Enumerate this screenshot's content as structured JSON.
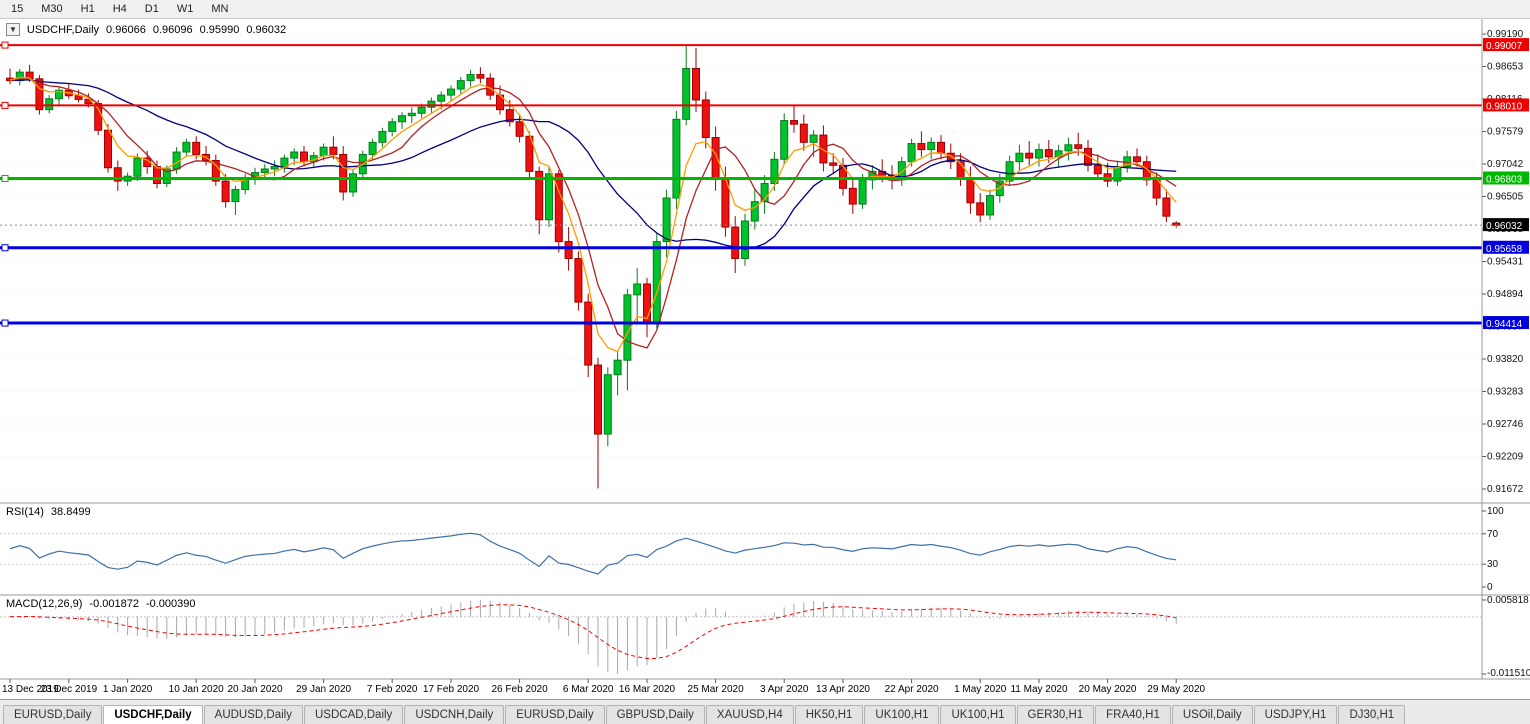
{
  "toolbar": {
    "timeframes": [
      "15",
      "M30",
      "H1",
      "H4",
      "D1",
      "W1",
      "MN"
    ]
  },
  "header": {
    "dropdown_icon": "▼",
    "title": "USDCHF,Daily",
    "open": "0.96066",
    "high": "0.96096",
    "low": "0.95990",
    "close": "0.96032"
  },
  "chart_data": {
    "type": "candlestick",
    "title": "USDCHF,Daily",
    "up_color": "#00c22b",
    "down_color": "#ee1111",
    "y_axis": {
      "min": 0.91672,
      "max": 0.9919,
      "ticks": [
        "0.99190",
        "0.98653",
        "0.98116",
        "0.97579",
        "0.97042",
        "0.96505",
        "0.95968",
        "0.95431",
        "0.94894",
        "0.94357",
        "0.93820",
        "0.93283",
        "0.92746",
        "0.92209",
        "0.91672"
      ]
    },
    "hlines": [
      {
        "value": 0.99007,
        "label": "0.99007",
        "color": "#ee0000",
        "width": 2
      },
      {
        "value": 0.9801,
        "label": "0.98010",
        "color": "#ee0000",
        "width": 2
      },
      {
        "value": 0.96803,
        "label": "0.96803",
        "color": "#00b800",
        "width": 3
      },
      {
        "value": 0.95658,
        "label": "0.95658",
        "color": "#0000dd",
        "width": 3
      },
      {
        "value": 0.94414,
        "label": "0.94414",
        "color": "#0000dd",
        "width": 3
      }
    ],
    "current_price": {
      "value": 0.96032,
      "label": "0.96032",
      "bg": "#000000"
    },
    "x_labels": [
      [
        "13 Dec 2019",
        0
      ],
      [
        "23 Dec 2019",
        6
      ],
      [
        "1 Jan 2020",
        12
      ],
      [
        "10 Jan 2020",
        19
      ],
      [
        "20 Jan 2020",
        25
      ],
      [
        "29 Jan 2020",
        32
      ],
      [
        "7 Feb 2020",
        39
      ],
      [
        "17 Feb 2020",
        45
      ],
      [
        "26 Feb 2020",
        52
      ],
      [
        "6 Mar 2020",
        59
      ],
      [
        "16 Mar 2020",
        65
      ],
      [
        "25 Mar 2020",
        72
      ],
      [
        "3 Apr 2020",
        79
      ],
      [
        "13 Apr 2020",
        85
      ],
      [
        "22 Apr 2020",
        92
      ],
      [
        "1 May 2020",
        99
      ],
      [
        "11 May 2020",
        105
      ],
      [
        "20 May 2020",
        112
      ],
      [
        "29 May 2020",
        119
      ]
    ],
    "moving_averages": [
      {
        "type": "sma",
        "period": 20,
        "color": "#000080"
      },
      {
        "type": "sma",
        "period": 7,
        "color": "#b22222"
      },
      {
        "type": "ema",
        "period": 5,
        "color": "#ff9c00"
      }
    ],
    "indicators": {
      "rsi": {
        "name": "RSI(14)",
        "value_label": "38.8499",
        "period": 14,
        "axis_ticks": [
          100,
          70,
          30,
          0
        ],
        "levels": [
          70,
          30
        ],
        "color": "#3e6fa8"
      },
      "macd": {
        "name": "MACD(12,26,9)",
        "macd_label": "-0.001872",
        "signal_label": "-0.000390",
        "fast": 12,
        "slow": 26,
        "signal": 9,
        "axis_max_label": "0.005818",
        "axis_min_label": "-0.011510",
        "hist_color": "#a8a8a8",
        "signal_color": "#ff0000"
      }
    },
    "candles": [
      [
        0.9846,
        0.9862,
        0.9836,
        0.9842
      ],
      [
        0.9842,
        0.9861,
        0.9834,
        0.9856
      ],
      [
        0.9856,
        0.9868,
        0.984,
        0.9845
      ],
      [
        0.9845,
        0.9851,
        0.9786,
        0.9794
      ],
      [
        0.9794,
        0.9818,
        0.9788,
        0.9812
      ],
      [
        0.9812,
        0.9832,
        0.9802,
        0.9826
      ],
      [
        0.9826,
        0.9838,
        0.9812,
        0.9817
      ],
      [
        0.9817,
        0.9827,
        0.9806,
        0.9811
      ],
      [
        0.9811,
        0.9821,
        0.9798,
        0.9804
      ],
      [
        0.9804,
        0.981,
        0.9752,
        0.976
      ],
      [
        0.976,
        0.977,
        0.969,
        0.9698
      ],
      [
        0.9698,
        0.971,
        0.966,
        0.9676
      ],
      [
        0.9676,
        0.969,
        0.9668,
        0.9684
      ],
      [
        0.9684,
        0.9722,
        0.9676,
        0.9714
      ],
      [
        0.9714,
        0.9726,
        0.9688,
        0.97
      ],
      [
        0.97,
        0.971,
        0.9664,
        0.9672
      ],
      [
        0.9672,
        0.9702,
        0.9666,
        0.9696
      ],
      [
        0.9696,
        0.9732,
        0.9688,
        0.9724
      ],
      [
        0.9724,
        0.9746,
        0.9716,
        0.974
      ],
      [
        0.974,
        0.975,
        0.9712,
        0.972
      ],
      [
        0.972,
        0.9734,
        0.9702,
        0.971
      ],
      [
        0.971,
        0.972,
        0.9668,
        0.9676
      ],
      [
        0.9676,
        0.9688,
        0.9632,
        0.9642
      ],
      [
        0.9642,
        0.9668,
        0.962,
        0.9662
      ],
      [
        0.9662,
        0.9688,
        0.9654,
        0.9682
      ],
      [
        0.9682,
        0.9698,
        0.967,
        0.969
      ],
      [
        0.969,
        0.9704,
        0.9678,
        0.9696
      ],
      [
        0.9696,
        0.971,
        0.9684,
        0.97
      ],
      [
        0.97,
        0.972,
        0.969,
        0.9714
      ],
      [
        0.9714,
        0.973,
        0.9702,
        0.9724
      ],
      [
        0.9724,
        0.9734,
        0.97,
        0.9708
      ],
      [
        0.9708,
        0.9724,
        0.9698,
        0.9718
      ],
      [
        0.9718,
        0.9738,
        0.971,
        0.9732
      ],
      [
        0.9732,
        0.975,
        0.9712,
        0.972
      ],
      [
        0.972,
        0.9734,
        0.9644,
        0.9658
      ],
      [
        0.9658,
        0.9694,
        0.965,
        0.9688
      ],
      [
        0.9688,
        0.9726,
        0.9682,
        0.972
      ],
      [
        0.972,
        0.9746,
        0.9712,
        0.974
      ],
      [
        0.974,
        0.9764,
        0.9732,
        0.9758
      ],
      [
        0.9758,
        0.978,
        0.975,
        0.9774
      ],
      [
        0.9774,
        0.979,
        0.9762,
        0.9784
      ],
      [
        0.9784,
        0.9798,
        0.9772,
        0.9788
      ],
      [
        0.9788,
        0.9804,
        0.978,
        0.9798
      ],
      [
        0.9798,
        0.9814,
        0.9788,
        0.9808
      ],
      [
        0.9808,
        0.9824,
        0.9794,
        0.9818
      ],
      [
        0.9818,
        0.9834,
        0.9808,
        0.9828
      ],
      [
        0.9828,
        0.9848,
        0.982,
        0.9842
      ],
      [
        0.9842,
        0.986,
        0.9832,
        0.9852
      ],
      [
        0.9852,
        0.9864,
        0.9838,
        0.9846
      ],
      [
        0.9846,
        0.9854,
        0.981,
        0.9818
      ],
      [
        0.9818,
        0.9834,
        0.9786,
        0.9794
      ],
      [
        0.9794,
        0.981,
        0.9766,
        0.9774
      ],
      [
        0.9774,
        0.9786,
        0.974,
        0.975
      ],
      [
        0.975,
        0.9758,
        0.968,
        0.9692
      ],
      [
        0.9692,
        0.97,
        0.9588,
        0.9612
      ],
      [
        0.9612,
        0.97,
        0.96,
        0.9688
      ],
      [
        0.9688,
        0.9694,
        0.9558,
        0.9576
      ],
      [
        0.9576,
        0.96,
        0.9528,
        0.9548
      ],
      [
        0.9548,
        0.956,
        0.9462,
        0.9476
      ],
      [
        0.9476,
        0.949,
        0.9352,
        0.9372
      ],
      [
        0.9372,
        0.9384,
        0.9168,
        0.9258
      ],
      [
        0.9258,
        0.9368,
        0.9238,
        0.9356
      ],
      [
        0.9356,
        0.9394,
        0.9322,
        0.938
      ],
      [
        0.938,
        0.9498,
        0.933,
        0.9488
      ],
      [
        0.9488,
        0.9532,
        0.944,
        0.9506
      ],
      [
        0.9506,
        0.9516,
        0.9418,
        0.9442
      ],
      [
        0.9442,
        0.959,
        0.9432,
        0.9576
      ],
      [
        0.9576,
        0.9662,
        0.955,
        0.9648
      ],
      [
        0.9648,
        0.9792,
        0.963,
        0.9778
      ],
      [
        0.9778,
        0.99,
        0.9768,
        0.9862
      ],
      [
        0.9862,
        0.9896,
        0.979,
        0.981
      ],
      [
        0.981,
        0.9824,
        0.973,
        0.9748
      ],
      [
        0.9748,
        0.9766,
        0.966,
        0.968
      ],
      [
        0.968,
        0.97,
        0.9584,
        0.96
      ],
      [
        0.96,
        0.9618,
        0.9524,
        0.9548
      ],
      [
        0.9548,
        0.9622,
        0.9536,
        0.961
      ],
      [
        0.961,
        0.9664,
        0.9596,
        0.9642
      ],
      [
        0.9642,
        0.9686,
        0.9622,
        0.9672
      ],
      [
        0.9672,
        0.9724,
        0.966,
        0.9712
      ],
      [
        0.9712,
        0.9788,
        0.9704,
        0.9776
      ],
      [
        0.9776,
        0.98,
        0.9756,
        0.977
      ],
      [
        0.977,
        0.9786,
        0.9726,
        0.974
      ],
      [
        0.974,
        0.976,
        0.9716,
        0.9752
      ],
      [
        0.9752,
        0.9768,
        0.9692,
        0.9706
      ],
      [
        0.9706,
        0.9722,
        0.9688,
        0.9702
      ],
      [
        0.9702,
        0.9714,
        0.9652,
        0.9664
      ],
      [
        0.9664,
        0.968,
        0.9622,
        0.9638
      ],
      [
        0.9638,
        0.9688,
        0.963,
        0.9678
      ],
      [
        0.9678,
        0.9702,
        0.9662,
        0.9692
      ],
      [
        0.9692,
        0.9712,
        0.9674,
        0.9686
      ],
      [
        0.9686,
        0.9702,
        0.9662,
        0.9678
      ],
      [
        0.9678,
        0.9716,
        0.9668,
        0.9708
      ],
      [
        0.9708,
        0.9746,
        0.97,
        0.9738
      ],
      [
        0.9738,
        0.9758,
        0.9716,
        0.9728
      ],
      [
        0.9728,
        0.9748,
        0.9712,
        0.974
      ],
      [
        0.974,
        0.9752,
        0.9712,
        0.9722
      ],
      [
        0.9722,
        0.9738,
        0.9696,
        0.9708
      ],
      [
        0.9708,
        0.9722,
        0.9668,
        0.968
      ],
      [
        0.968,
        0.97,
        0.9622,
        0.964
      ],
      [
        0.964,
        0.9656,
        0.9608,
        0.962
      ],
      [
        0.962,
        0.9662,
        0.9612,
        0.9652
      ],
      [
        0.9652,
        0.9688,
        0.964,
        0.9676
      ],
      [
        0.9676,
        0.9718,
        0.9668,
        0.9708
      ],
      [
        0.9708,
        0.9736,
        0.9694,
        0.9722
      ],
      [
        0.9722,
        0.9742,
        0.9702,
        0.9714
      ],
      [
        0.9714,
        0.9738,
        0.97,
        0.9728
      ],
      [
        0.9728,
        0.9744,
        0.9706,
        0.9716
      ],
      [
        0.9716,
        0.9736,
        0.9698,
        0.9726
      ],
      [
        0.9726,
        0.9748,
        0.971,
        0.9736
      ],
      [
        0.9736,
        0.9756,
        0.9718,
        0.973
      ],
      [
        0.973,
        0.9744,
        0.9692,
        0.9702
      ],
      [
        0.9702,
        0.972,
        0.9678,
        0.9688
      ],
      [
        0.9688,
        0.9706,
        0.9666,
        0.9676
      ],
      [
        0.9676,
        0.971,
        0.9668,
        0.97
      ],
      [
        0.97,
        0.9726,
        0.969,
        0.9716
      ],
      [
        0.9716,
        0.973,
        0.97,
        0.9708
      ],
      [
        0.9708,
        0.9718,
        0.9668,
        0.9678
      ],
      [
        0.9678,
        0.969,
        0.9636,
        0.9648
      ],
      [
        0.9648,
        0.9662,
        0.9608,
        0.9618
      ],
      [
        0.96066,
        0.96096,
        0.9599,
        0.96032
      ]
    ]
  },
  "tabs": {
    "items": [
      "EURUSD,Daily",
      "USDCHF,Daily",
      "AUDUSD,Daily",
      "USDCAD,Daily",
      "USDCNH,Daily",
      "EURUSD,Daily",
      "GBPUSD,Daily",
      "XAUUSD,H4",
      "HK50,H1",
      "UK100,H1",
      "UK100,H1",
      "GER30,H1",
      "FRA40,H1",
      "USOil,Daily",
      "USDJPY,H1",
      "DJ30,H1"
    ],
    "active_index": 1
  }
}
